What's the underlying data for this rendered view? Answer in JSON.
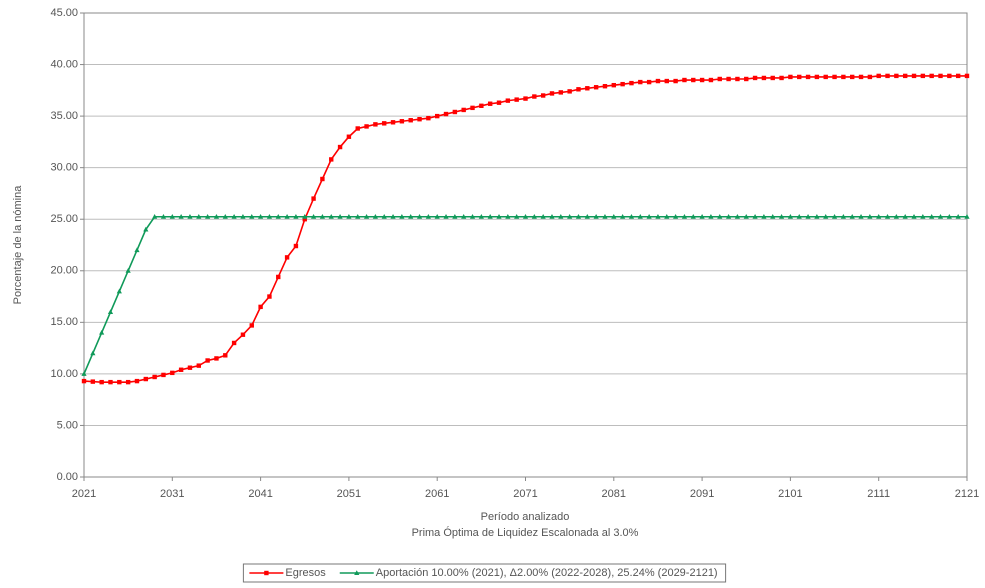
{
  "chart_data": {
    "type": "line",
    "y_label": "Porcentaje de la nómina",
    "x_label": "Período analizado",
    "subtitle": "Prima Óptima de Liquidez Escalonada al 3.0%",
    "x": [
      2021,
      2022,
      2023,
      2024,
      2025,
      2026,
      2027,
      2028,
      2029,
      2030,
      2031,
      2032,
      2033,
      2034,
      2035,
      2036,
      2037,
      2038,
      2039,
      2040,
      2041,
      2042,
      2043,
      2044,
      2045,
      2046,
      2047,
      2048,
      2049,
      2050,
      2051,
      2052,
      2053,
      2054,
      2055,
      2056,
      2057,
      2058,
      2059,
      2060,
      2061,
      2062,
      2063,
      2064,
      2065,
      2066,
      2067,
      2068,
      2069,
      2070,
      2071,
      2072,
      2073,
      2074,
      2075,
      2076,
      2077,
      2078,
      2079,
      2080,
      2081,
      2082,
      2083,
      2084,
      2085,
      2086,
      2087,
      2088,
      2089,
      2090,
      2091,
      2092,
      2093,
      2094,
      2095,
      2096,
      2097,
      2098,
      2099,
      2100,
      2101,
      2102,
      2103,
      2104,
      2105,
      2106,
      2107,
      2108,
      2109,
      2110,
      2111,
      2112,
      2113,
      2114,
      2115,
      2116,
      2117,
      2118,
      2119,
      2120,
      2121
    ],
    "series": [
      {
        "name": "Egresos",
        "color": "#ff0000",
        "marker": "square",
        "values": [
          9.3,
          9.25,
          9.2,
          9.2,
          9.2,
          9.2,
          9.3,
          9.5,
          9.7,
          9.9,
          10.1,
          10.4,
          10.6,
          10.8,
          11.3,
          11.5,
          11.8,
          13.0,
          13.8,
          14.7,
          16.5,
          17.5,
          19.4,
          21.3,
          22.4,
          25.0,
          27.0,
          28.9,
          30.8,
          32.0,
          33.0,
          33.8,
          34.0,
          34.2,
          34.3,
          34.4,
          34.5,
          34.6,
          34.7,
          34.8,
          35.0,
          35.2,
          35.4,
          35.6,
          35.8,
          36.0,
          36.2,
          36.3,
          36.5,
          36.6,
          36.7,
          36.9,
          37.0,
          37.2,
          37.3,
          37.4,
          37.6,
          37.7,
          37.8,
          37.9,
          38.0,
          38.1,
          38.2,
          38.3,
          38.3,
          38.4,
          38.4,
          38.4,
          38.5,
          38.5,
          38.5,
          38.5,
          38.6,
          38.6,
          38.6,
          38.6,
          38.7,
          38.7,
          38.7,
          38.7,
          38.8,
          38.8,
          38.8,
          38.8,
          38.8,
          38.8,
          38.8,
          38.8,
          38.8,
          38.8,
          38.9,
          38.9,
          38.9,
          38.9,
          38.9,
          38.9,
          38.9,
          38.9,
          38.9,
          38.9,
          38.9
        ]
      },
      {
        "name": "Aportación 10.00% (2021), Δ2.00% (2022-2028), 25.24% (2029-2121)",
        "color": "#109a5a",
        "marker": "triangle",
        "values": [
          10,
          12,
          14,
          16,
          18,
          20,
          22,
          24,
          25.24,
          25.24,
          25.24,
          25.24,
          25.24,
          25.24,
          25.24,
          25.24,
          25.24,
          25.24,
          25.24,
          25.24,
          25.24,
          25.24,
          25.24,
          25.24,
          25.24,
          25.24,
          25.24,
          25.24,
          25.24,
          25.24,
          25.24,
          25.24,
          25.24,
          25.24,
          25.24,
          25.24,
          25.24,
          25.24,
          25.24,
          25.24,
          25.24,
          25.24,
          25.24,
          25.24,
          25.24,
          25.24,
          25.24,
          25.24,
          25.24,
          25.24,
          25.24,
          25.24,
          25.24,
          25.24,
          25.24,
          25.24,
          25.24,
          25.24,
          25.24,
          25.24,
          25.24,
          25.24,
          25.24,
          25.24,
          25.24,
          25.24,
          25.24,
          25.24,
          25.24,
          25.24,
          25.24,
          25.24,
          25.24,
          25.24,
          25.24,
          25.24,
          25.24,
          25.24,
          25.24,
          25.24,
          25.24,
          25.24,
          25.24,
          25.24,
          25.24,
          25.24,
          25.24,
          25.24,
          25.24,
          25.24,
          25.24,
          25.24,
          25.24,
          25.24,
          25.24,
          25.24,
          25.24,
          25.24,
          25.24,
          25.24,
          25.24
        ]
      }
    ],
    "xlim": [
      2021,
      2121
    ],
    "xticks": [
      2021,
      2031,
      2041,
      2051,
      2061,
      2071,
      2081,
      2091,
      2101,
      2111,
      2121
    ],
    "ylim": [
      0,
      45
    ],
    "yticks": [
      {
        "value": 0,
        "label": "0.00"
      },
      {
        "value": 5,
        "label": "5.00"
      },
      {
        "value": 10,
        "label": "10.00"
      },
      {
        "value": 15,
        "label": "15.00"
      },
      {
        "value": 20,
        "label": "20.00"
      },
      {
        "value": 25,
        "label": "25.00"
      },
      {
        "value": 30,
        "label": "30.00"
      },
      {
        "value": 35,
        "label": "35.00"
      },
      {
        "value": 40,
        "label": "40.00"
      },
      {
        "value": 45,
        "label": "45.00"
      }
    ],
    "grid": true,
    "legend": "bottom"
  }
}
